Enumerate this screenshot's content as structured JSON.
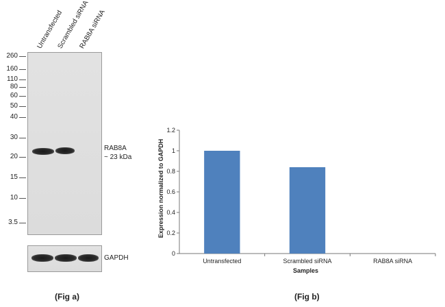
{
  "fig_a": {
    "caption": "(Fig a)",
    "lanes": [
      "Untransfected",
      "Scrambled siRNA",
      "RAB8A siRNA"
    ],
    "markers": [
      "260",
      "160",
      "110",
      "80",
      "60",
      "50",
      "40",
      "30",
      "20",
      "15",
      "10",
      "3.5"
    ],
    "target_label": "RAB8A",
    "target_size": "~ 23 kDa",
    "loading_control": "GAPDH"
  },
  "chart_data": {
    "type": "bar",
    "title": "",
    "caption": "(Fig b)",
    "categories": [
      "Untransfected",
      "Scrambled siRNA",
      "RAB8A siRNA"
    ],
    "values": [
      1.0,
      0.84,
      0.0
    ],
    "xlabel": "Samples",
    "ylabel": "Expression  normalized to GAPDH",
    "ylim": [
      0,
      1.2
    ],
    "yticks": [
      "0",
      "0.2",
      "0.4",
      "0.6",
      "0.8",
      "1",
      "1.2"
    ],
    "grid": false,
    "bar_color": "#4f81bd"
  }
}
